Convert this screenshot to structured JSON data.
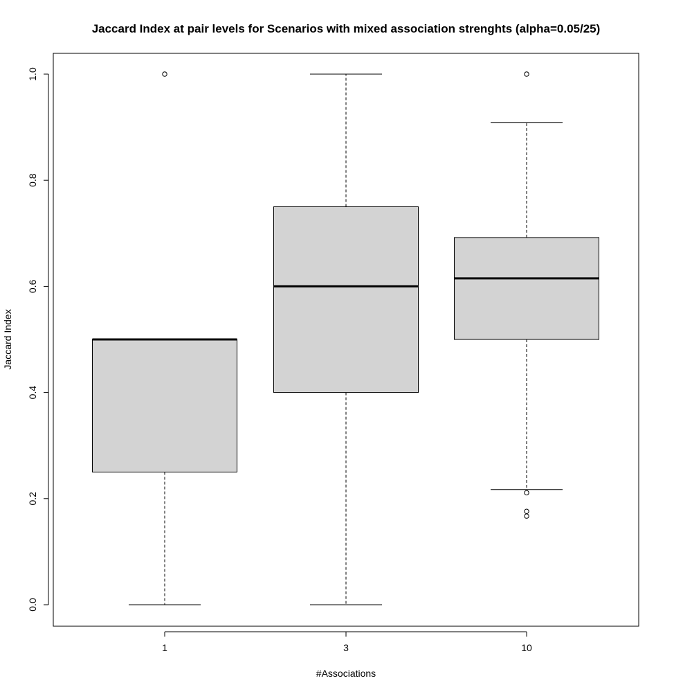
{
  "chart_data": {
    "type": "boxplot",
    "title": "Jaccard Index at pair levels for Scenarios with mixed association strenghts (alpha=0.05/25)",
    "xlabel": "#Associations",
    "ylabel": "Jaccard Index",
    "categories": [
      "1",
      "3",
      "10"
    ],
    "ylim": [
      -0.04,
      1.04
    ],
    "yticks": [
      0.0,
      0.2,
      0.4,
      0.6,
      0.8,
      1.0
    ],
    "ytick_labels": [
      "0.0",
      "0.2",
      "0.4",
      "0.6",
      "0.8",
      "1.0"
    ],
    "grid": false,
    "box_fill": "#d3d3d3",
    "boxes": [
      {
        "category": "1",
        "whisker_low": 0.0,
        "q1": 0.25,
        "median": 0.5,
        "q3": 0.5,
        "whisker_high": 0.5,
        "outliers": [
          1.0
        ]
      },
      {
        "category": "3",
        "whisker_low": 0.0,
        "q1": 0.4,
        "median": 0.6,
        "q3": 0.75,
        "whisker_high": 1.0,
        "outliers": []
      },
      {
        "category": "10",
        "whisker_low": 0.217,
        "q1": 0.5,
        "median": 0.615,
        "q3": 0.692,
        "whisker_high": 0.909,
        "outliers": [
          1.0,
          0.211,
          0.176,
          0.167
        ]
      }
    ]
  }
}
